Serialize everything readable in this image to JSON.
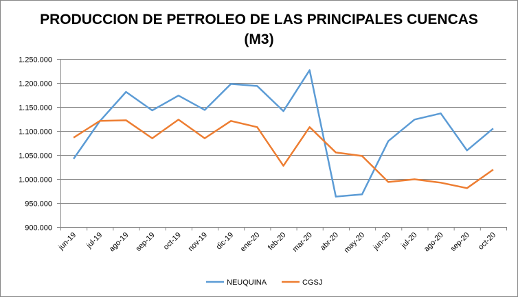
{
  "chart_data": {
    "type": "line",
    "title_line1": "PRODUCCION DE PETROLEO DE LAS PRINCIPALES CUENCAS",
    "title_line2": "(M3)",
    "xlabel": "",
    "ylabel": "",
    "categories": [
      "jun-19",
      "jul-19",
      "ago-19",
      "sep-19",
      "oct-19",
      "nov-19",
      "dic-19",
      "ene-20",
      "feb-20",
      "mar-20",
      "abr-20",
      "may-20",
      "jun-20",
      "jul-20",
      "ago-20",
      "sep-20",
      "oct-20"
    ],
    "ylim": [
      900000,
      1250000
    ],
    "yticks": [
      900000,
      950000,
      1000000,
      1050000,
      1100000,
      1150000,
      1200000,
      1250000
    ],
    "ytick_labels": [
      "900.000",
      "950.000",
      "1.000.000",
      "1.050.000",
      "1.100.000",
      "1.150.000",
      "1.200.000",
      "1.250.000"
    ],
    "grid": true,
    "legend_position": "bottom",
    "series": [
      {
        "name": "NEUQUINA",
        "color": "#5B9BD5",
        "values": [
          1042000,
          1120500,
          1181400,
          1142900,
          1173800,
          1143800,
          1198100,
          1193800,
          1141400,
          1226700,
          963300,
          968100,
          1079000,
          1123800,
          1136700,
          1059600,
          1105300
        ]
      },
      {
        "name": "CGSJ",
        "color": "#ED7D31",
        "values": [
          1086200,
          1121000,
          1122400,
          1084800,
          1123800,
          1084800,
          1121000,
          1108100,
          1027600,
          1108100,
          1055300,
          1048100,
          993800,
          999500,
          992400,
          981000,
          1019600
        ]
      }
    ]
  }
}
